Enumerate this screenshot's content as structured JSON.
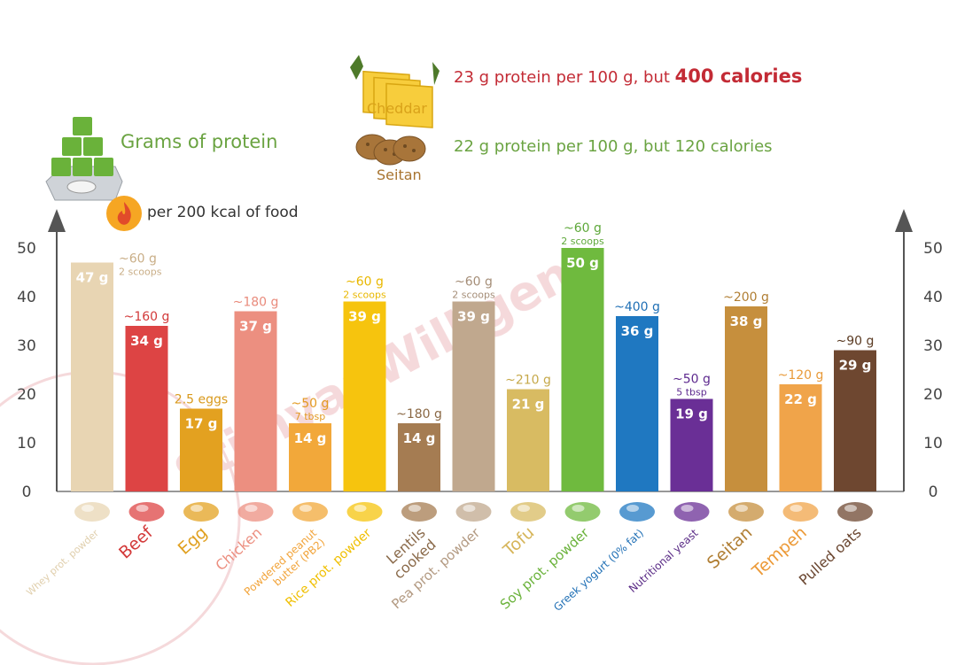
{
  "header": {
    "legend_protein": "Grams of protein",
    "legend_kcal": "per 200 kcal of food",
    "cheddar_label": "Cheddar",
    "cheddar_text_a": "23 g protein per 100 g, but ",
    "cheddar_text_b": "400 calories",
    "seitan_label": "Seitan",
    "seitan_text": "22 g protein per 100 g, but 120 calories",
    "watermark": "StijnvanWilligen"
  },
  "colors": {
    "green": "#6aa341",
    "red": "#c32b35",
    "axis": "#555555"
  },
  "chart_data": {
    "type": "bar",
    "ylabel": "",
    "ylim": [
      0,
      55
    ],
    "yticks": [
      0,
      10,
      20,
      30,
      40,
      50
    ],
    "categories": [
      "Whey prot. powder",
      "Beef",
      "Egg",
      "Chicken",
      "Powdered peanut butter (PB2)",
      "Rice prot. powder",
      "Lentils cooked",
      "Pea prot. powder",
      "Tofu",
      "Soy prot. powder",
      "Greek yogurt (0% fat)",
      "Nutritional yeast",
      "Seitan",
      "Tempeh",
      "Pulled oats"
    ],
    "values": [
      47,
      34,
      17,
      37,
      14,
      39,
      14,
      39,
      21,
      50,
      36,
      19,
      38,
      22,
      29
    ],
    "bars": [
      {
        "name": "Whey prot. powder",
        "name_lines": [
          "Whey prot. powder"
        ],
        "value": 47,
        "value_label": "47 g",
        "amount": "~60 g",
        "amount_sub": "2 scoops",
        "amount_color": "#c9ae87",
        "color": "#e8d5b3",
        "label_color": "#e0cfad",
        "label_size": 11,
        "icon": "scoop-powder-icon"
      },
      {
        "name": "Beef",
        "name_lines": [
          "Beef"
        ],
        "value": 34,
        "value_label": "34 g",
        "amount": "~160 g",
        "amount_sub": "",
        "amount_color": "#d23a3a",
        "color": "#dd4444",
        "label_color": "#d33a3a",
        "label_size": 19,
        "icon": "beef-icon"
      },
      {
        "name": "Egg",
        "name_lines": [
          "Egg"
        ],
        "value": 17,
        "value_label": "17 g",
        "amount": "2.5 eggs",
        "amount_sub": "",
        "amount_color": "#d99a1d",
        "color": "#e3a120",
        "label_color": "#e0a020",
        "label_size": 19,
        "icon": "egg-icon"
      },
      {
        "name": "Chicken",
        "name_lines": [
          "Chicken"
        ],
        "value": 37,
        "value_label": "37 g",
        "amount": "~180 g",
        "amount_sub": "",
        "amount_color": "#e98b7c",
        "color": "#ec8f80",
        "label_color": "#ec8f80",
        "label_size": 16,
        "icon": "chicken-icon"
      },
      {
        "name": "Powdered peanut butter (PB2)",
        "name_lines": [
          "Powdered peanut",
          "butter (PB2)"
        ],
        "value": 14,
        "value_label": "14 g",
        "amount": "~50 g",
        "amount_sub": "7 tbsp",
        "amount_color": "#e39a22",
        "color": "#f2a83a",
        "label_color": "#f2a43a",
        "label_size": 12,
        "icon": "peanut-butter-icon"
      },
      {
        "name": "Rice prot. powder",
        "name_lines": [
          "Rice prot. powder"
        ],
        "value": 39,
        "value_label": "39 g",
        "amount": "~60 g",
        "amount_sub": "2 scoops",
        "amount_color": "#e9b800",
        "color": "#f6c40e",
        "label_color": "#f0bf00",
        "label_size": 14,
        "icon": "rice-powder-icon"
      },
      {
        "name": "Lentils cooked",
        "name_lines": [
          "Lentils",
          "cooked"
        ],
        "value": 14,
        "value_label": "14 g",
        "amount": "~180 g",
        "amount_sub": "",
        "amount_color": "#8a6844",
        "color": "#a57c52",
        "label_color": "#8a6a4a",
        "label_size": 16,
        "icon": "lentils-icon"
      },
      {
        "name": "Pea prot. powder",
        "name_lines": [
          "Pea prot. powder"
        ],
        "value": 39,
        "value_label": "39 g",
        "amount": "~60 g",
        "amount_sub": "2 scoops",
        "amount_color": "#a58e78",
        "color": "#c0a88e",
        "label_color": "#b39a82",
        "label_size": 15,
        "icon": "pea-powder-icon"
      },
      {
        "name": "Tofu",
        "name_lines": [
          "Tofu"
        ],
        "value": 21,
        "value_label": "21 g",
        "amount": "~210 g",
        "amount_sub": "",
        "amount_color": "#c6a94b",
        "color": "#d8bb62",
        "label_color": "#d6b55a",
        "label_size": 19,
        "icon": "tofu-icon"
      },
      {
        "name": "Soy prot. powder",
        "name_lines": [
          "Soy prot. powder"
        ],
        "value": 50,
        "value_label": "50 g",
        "amount": "~60 g",
        "amount_sub": "2 scoops",
        "amount_color": "#5ea83a",
        "color": "#6fba3e",
        "label_color": "#6ab23a",
        "label_size": 15,
        "icon": "soy-powder-icon"
      },
      {
        "name": "Greek yogurt (0% fat)",
        "name_lines": [
          "Greek yogurt (0% fat)"
        ],
        "value": 36,
        "value_label": "36 g",
        "amount": "~400 g",
        "amount_sub": "",
        "amount_color": "#1f6fb5",
        "color": "#1f78c1",
        "label_color": "#1f6fb5",
        "label_size": 12,
        "icon": "yogurt-icon"
      },
      {
        "name": "Nutritional yeast",
        "name_lines": [
          "Nutritional yeast"
        ],
        "value": 19,
        "value_label": "19 g",
        "amount": "~50 g",
        "amount_sub": "5 tbsp",
        "amount_color": "#5e2a8f",
        "color": "#6a2f96",
        "label_color": "#5a2b86",
        "label_size": 12,
        "icon": "yeast-icon"
      },
      {
        "name": "Seitan",
        "name_lines": [
          "Seitan"
        ],
        "value": 38,
        "value_label": "38 g",
        "amount": "~200 g",
        "amount_sub": "",
        "amount_color": "#b07e33",
        "color": "#c68f3d",
        "label_color": "#b07e33",
        "label_size": 19,
        "icon": "seitan-icon"
      },
      {
        "name": "Tempeh",
        "name_lines": [
          "Tempeh"
        ],
        "value": 22,
        "value_label": "22 g",
        "amount": "~120 g",
        "amount_sub": "",
        "amount_color": "#e89a3a",
        "color": "#f0a44a",
        "label_color": "#ec9a38",
        "label_size": 19,
        "icon": "tempeh-icon"
      },
      {
        "name": "Pulled oats",
        "name_lines": [
          "Pulled oats"
        ],
        "value": 29,
        "value_label": "29 g",
        "amount": "~90 g",
        "amount_sub": "",
        "amount_color": "#5a3a22",
        "color": "#6e4730",
        "label_color": "#6a4630",
        "label_size": 16,
        "icon": "oats-icon"
      }
    ]
  }
}
